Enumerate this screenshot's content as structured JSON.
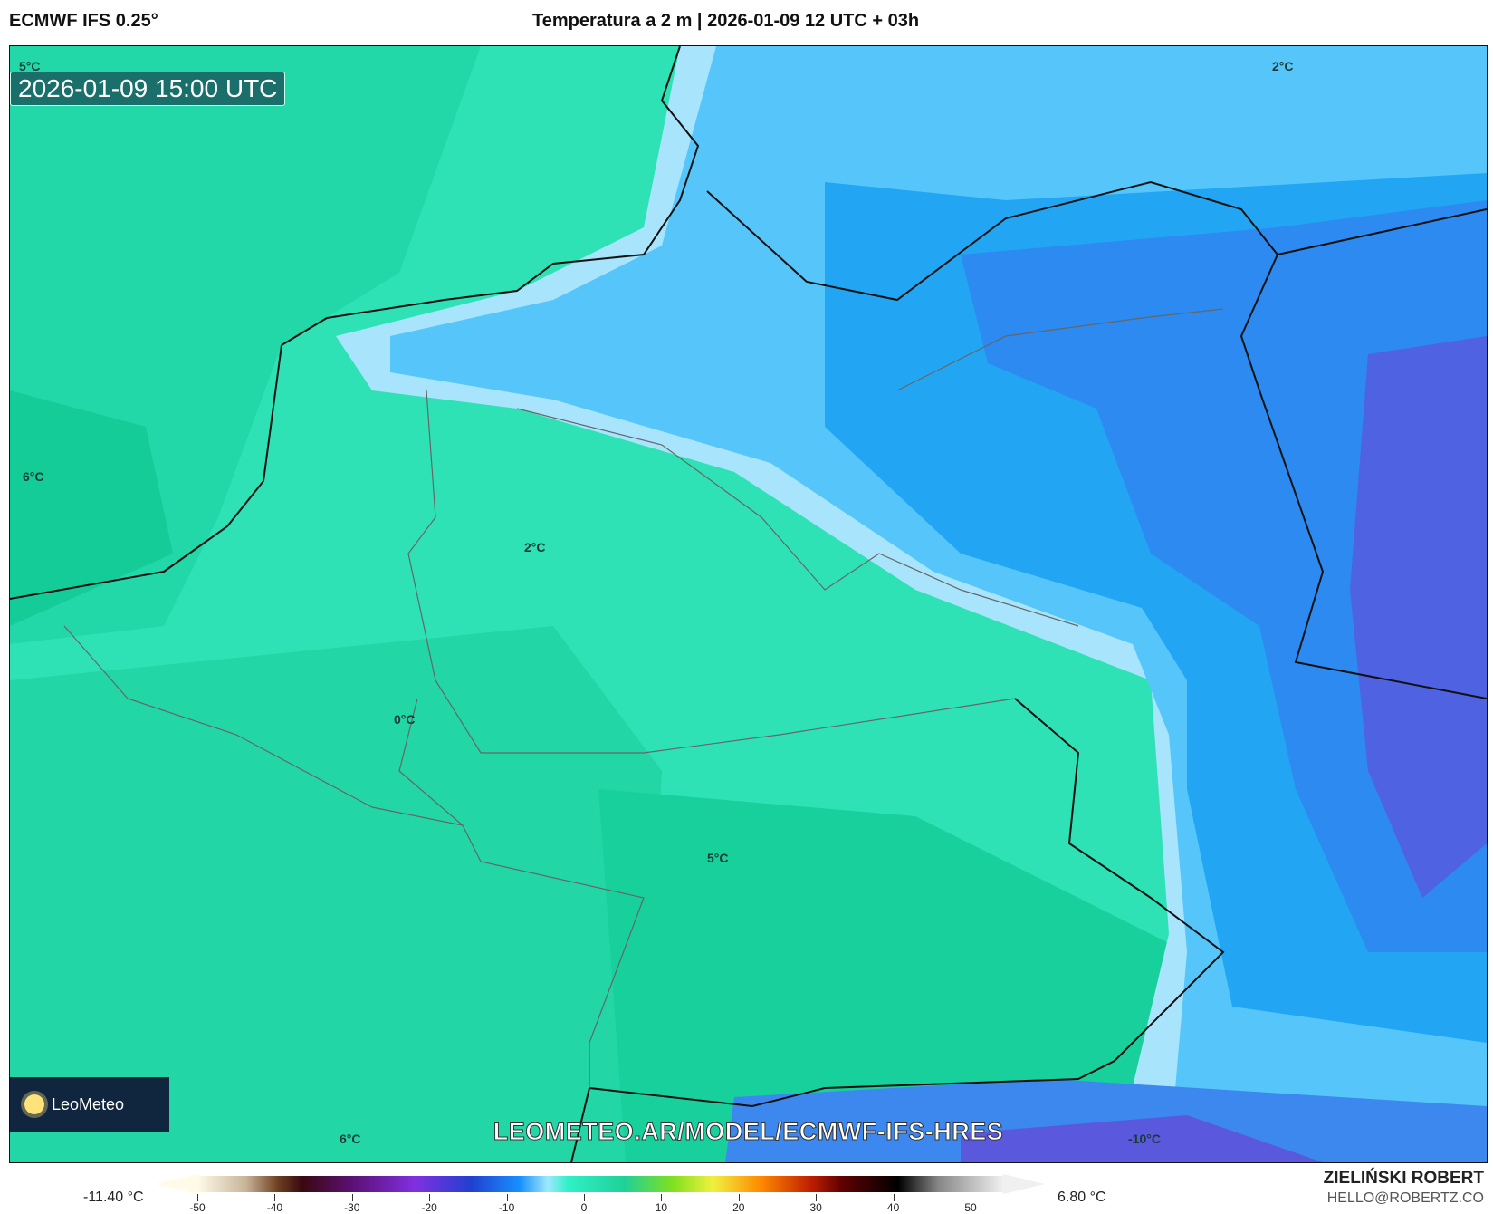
{
  "header": {
    "model": "ECMWF IFS 0.25°",
    "title": "Temperatura a 2 m | 2026-01-09 12 UTC + 03h"
  },
  "map": {
    "valid_time": "2026-01-09 15:00 UTC",
    "watermark": "LEOMETEO.AR/MODEL/ECMWF-IFS-HRES",
    "logo": "LeoMeteo",
    "contour_labels": [
      "5°C",
      "2°C",
      "6°C",
      "2°C",
      "0°C",
      "5°C",
      "6°C",
      "-10°C"
    ],
    "colors": {
      "warm_sea": "#1ed6a2",
      "teal": "#3ee8c8",
      "light_blue": "#a8e4fb",
      "sky_blue": "#4cc4fa",
      "blue": "#1ca2f2",
      "deep_blue": "#2a84f0",
      "violet": "#4e62e2"
    }
  },
  "legend": {
    "min": "-11.40 °C",
    "max": "6.80 °C",
    "ticks": [
      "-50",
      "-40",
      "-30",
      "-20",
      "-10",
      "0",
      "10",
      "20",
      "30",
      "40",
      "50"
    ]
  },
  "author": {
    "name": "ZIELIŃSKI ROBERT",
    "email": "HELLO@ROBERTZ.CO"
  }
}
